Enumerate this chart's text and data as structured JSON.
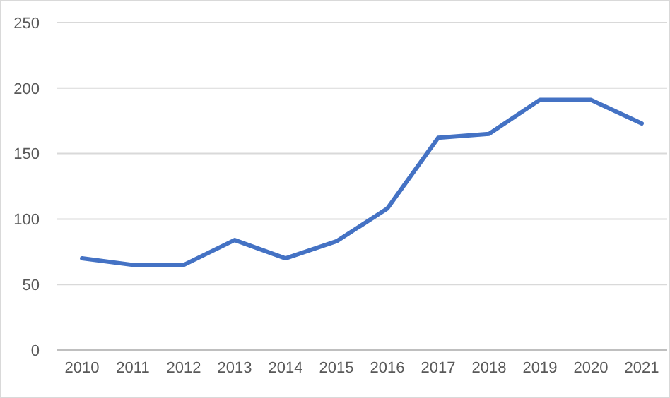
{
  "chart_data": {
    "type": "line",
    "categories": [
      "2010",
      "2011",
      "2012",
      "2013",
      "2014",
      "2015",
      "2016",
      "2017",
      "2018",
      "2019",
      "2020",
      "2021"
    ],
    "series": [
      {
        "color": "#4472c4",
        "values": [
          70,
          65,
          65,
          84,
          70,
          83,
          108,
          162,
          165,
          191,
          191,
          173
        ]
      }
    ],
    "ylim": [
      0,
      250
    ],
    "yticks": [
      0,
      50,
      100,
      150,
      200,
      250
    ],
    "grid": "y",
    "marker": "none",
    "line_style": "solid"
  }
}
